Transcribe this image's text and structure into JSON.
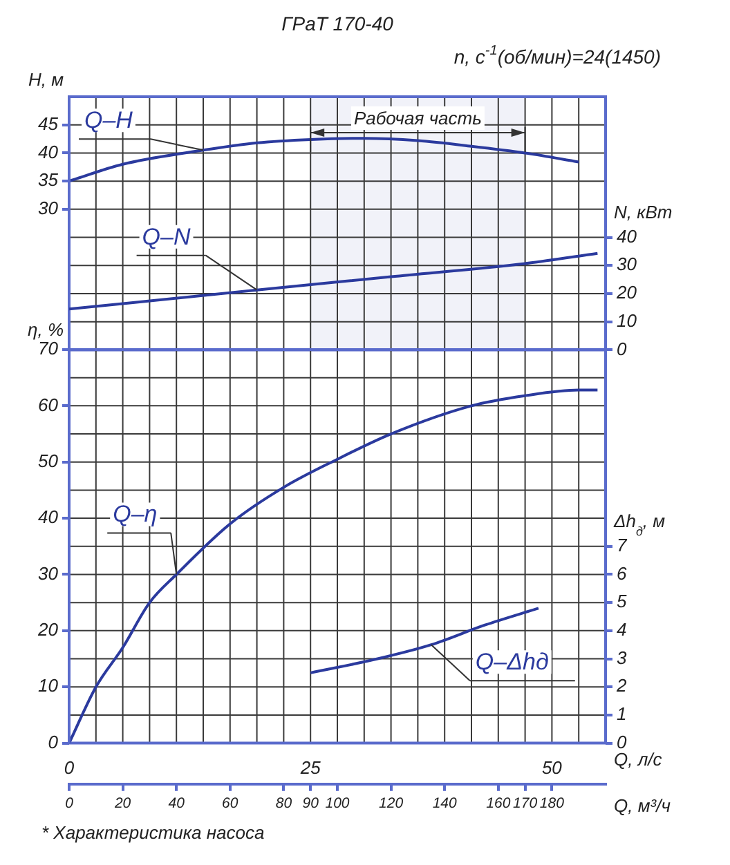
{
  "chart_data": [
    {
      "type": "line",
      "title": "ГРаТ 170-40",
      "subtitle": "n, с$^{-1}$(об/мин)=24(1450)",
      "ylabel": "H, м",
      "y2label": "N, кВт",
      "tick_labels": "y",
      "xlim": [
        0,
        200
      ],
      "ylim": [
        5,
        50
      ],
      "yticks": [
        30,
        35,
        40,
        45
      ],
      "y2lim": [
        0,
        90
      ],
      "y2ticks": [
        0,
        10,
        20,
        30,
        40
      ],
      "series": [
        {
          "name": "Q–H",
          "color": "#2b3a9e",
          "x": [
            0,
            20,
            50,
            70,
            90,
            110,
            130,
            150,
            170,
            190
          ],
          "values": [
            35,
            38,
            40.5,
            41.8,
            42.4,
            42.6,
            42.2,
            41.2,
            40,
            38.4
          ]
        },
        {
          "name": "Q–N",
          "color": "#2b3a9e",
          "axis": "y2",
          "x": [
            0,
            70,
            120,
            170,
            197
          ],
          "values": [
            14.5,
            21.3,
            26,
            30.7,
            34.3
          ]
        }
      ],
      "bands": [
        {
          "axis": "x",
          "from": 90,
          "to": 170,
          "label": "Рабочая часть"
        }
      ],
      "grid": true,
      "legend": false,
      "marker": "none",
      "line_style": "solid"
    },
    {
      "type": "line",
      "xlabel": "Q, м³/ч",
      "x2label": "Q, л/с",
      "ylabel": "η, %",
      "y2label": "Δh$_{д}$, м",
      "xlim": [
        0,
        200
      ],
      "xticks": [
        0,
        20,
        40,
        60,
        80,
        90,
        100,
        120,
        140,
        160,
        170,
        180
      ],
      "x2lim": [
        0,
        55.56
      ],
      "x2ticks": [
        0,
        25,
        50
      ],
      "ylim": [
        0,
        70
      ],
      "yticks": [
        0,
        10,
        20,
        30,
        40,
        50,
        60,
        70
      ],
      "y2lim": [
        0,
        14
      ],
      "y2ticks": [
        0,
        1,
        2,
        3,
        4,
        5,
        6,
        7
      ],
      "series": [
        {
          "name": "Q–η",
          "color": "#2b3a9e",
          "x": [
            0,
            10,
            20,
            30,
            40,
            60,
            80,
            100,
            120,
            150,
            170,
            190,
            197
          ],
          "values": [
            0,
            10,
            17,
            25,
            30,
            39,
            45.5,
            50.5,
            55,
            60,
            61.8,
            62.8,
            62.8
          ]
        },
        {
          "name": "Q–Δhд",
          "color": "#2b3a9e",
          "axis": "y2",
          "x": [
            90,
            115,
            135,
            155,
            175
          ],
          "values": [
            2.5,
            3.0,
            3.5,
            4.2,
            4.8
          ]
        }
      ],
      "annotations": [
        "* Характеристика насоса"
      ],
      "grid": true,
      "legend": false,
      "marker": "none",
      "line_style": "solid"
    }
  ]
}
